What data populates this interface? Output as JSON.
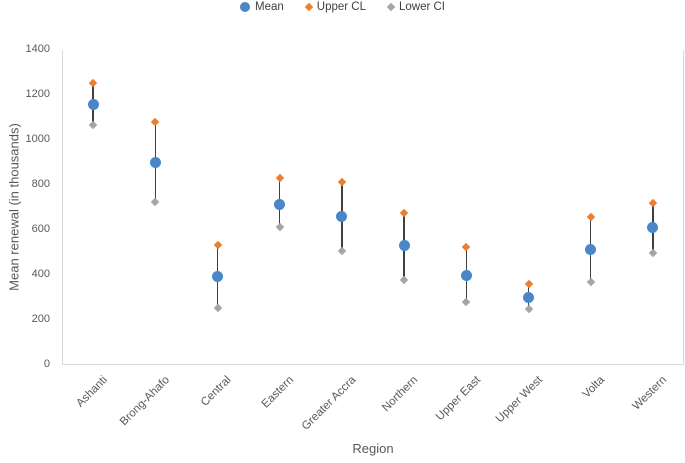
{
  "legend": {
    "items": [
      {
        "label": "Mean",
        "marker": "circle",
        "color": "#4a86c8"
      },
      {
        "label": "Upper CL",
        "marker": "diamond",
        "color": "#ed7d31"
      },
      {
        "label": "Lower CI",
        "marker": "diamond",
        "color": "#a5a5a5"
      }
    ]
  },
  "chart_data": {
    "type": "scatter",
    "title": "",
    "xlabel": "Region",
    "ylabel": "Mean renewal (in thousands)",
    "ylim": [
      0,
      1400
    ],
    "ytick_step": 200,
    "grid": false,
    "legend_position": "top-center",
    "categories": [
      "Ashanti",
      "Brong-Ahafo",
      "Central",
      "Eastern",
      "Greater Accra",
      "Northern",
      "Upper East",
      "Upper West",
      "Volta",
      "Western"
    ],
    "series": [
      {
        "name": "Mean",
        "marker": "circle",
        "color": "#4a86c8",
        "values": [
          1160,
          900,
          395,
          715,
          660,
          530,
          400,
          300,
          515,
          610
        ]
      },
      {
        "name": "Upper CL",
        "marker": "diamond",
        "color": "#ed7d31",
        "values": [
          1255,
          1080,
          535,
          830,
          815,
          675,
          525,
          360,
          660,
          720
        ]
      },
      {
        "name": "Lower CI",
        "marker": "diamond",
        "color": "#a5a5a5",
        "values": [
          1065,
          725,
          255,
          615,
          505,
          380,
          280,
          250,
          370,
          500
        ]
      }
    ]
  },
  "colors": {
    "error_bar": "#404040",
    "axis_line": "#d9d9d9",
    "tick_text": "#595959",
    "legend_text": "#404040"
  }
}
